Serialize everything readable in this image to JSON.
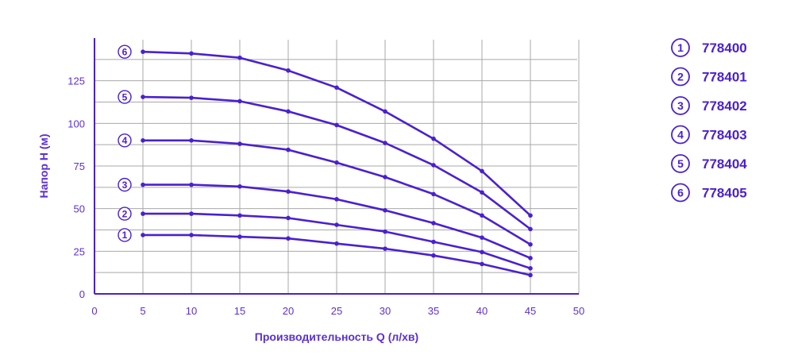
{
  "chart_data": {
    "type": "line",
    "xlabel": "Производительность Q (л/хв)",
    "ylabel": "Напор H (м)",
    "xlim": [
      0,
      50
    ],
    "ylim": [
      0,
      150
    ],
    "xticks": [
      0,
      5,
      10,
      15,
      20,
      25,
      30,
      35,
      40,
      45,
      50
    ],
    "yticks": [
      0,
      25,
      50,
      75,
      100,
      125
    ],
    "grid": true,
    "legend_position": "right",
    "line_color": "#4a20d0",
    "grid_color": "#a9a9a9",
    "x": [
      5,
      10,
      15,
      20,
      25,
      30,
      35,
      40,
      45
    ],
    "series": [
      {
        "marker": "1",
        "name": "778400",
        "values": [
          34.5,
          34.5,
          33.5,
          32.5,
          29.5,
          26.5,
          22.5,
          17.5,
          11
        ]
      },
      {
        "marker": "2",
        "name": "778401",
        "values": [
          47,
          47,
          46,
          44.5,
          40.5,
          36.5,
          30.5,
          24.5,
          15
        ]
      },
      {
        "marker": "3",
        "name": "778402",
        "values": [
          64,
          64,
          63,
          60,
          55.5,
          49,
          41.5,
          33,
          21
        ]
      },
      {
        "marker": "4",
        "name": "778403",
        "values": [
          90,
          90,
          88,
          84.5,
          77,
          68.5,
          58.5,
          46,
          29
        ]
      },
      {
        "marker": "5",
        "name": "778404",
        "values": [
          115.5,
          115,
          113,
          107,
          99,
          88.5,
          75.5,
          59.5,
          38
        ]
      },
      {
        "marker": "6",
        "name": "778405",
        "values": [
          142,
          141,
          138.5,
          131,
          121,
          107,
          91,
          72,
          46
        ]
      }
    ]
  }
}
